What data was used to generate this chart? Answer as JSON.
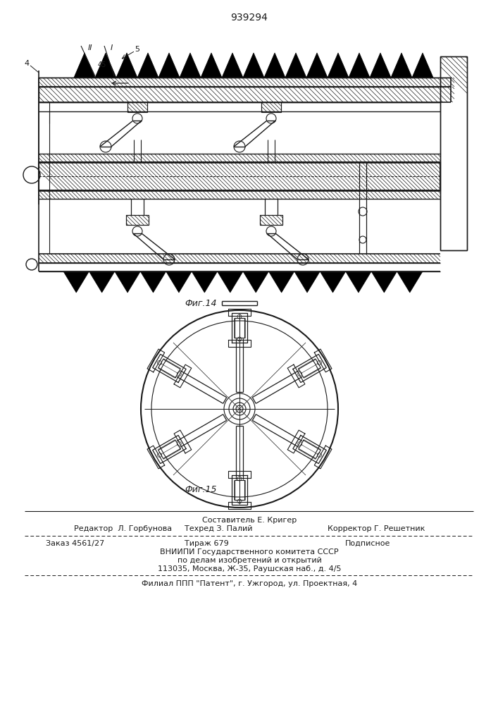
{
  "patent_number": "939294",
  "fig14_label": "Фиг.14",
  "fig15_label": "Фиг.15",
  "footer_line1": "Составитель Е. Кригер",
  "footer_line2_left": "Редактор  Л. Горбунова",
  "footer_line2_mid": "Техред З. Палий",
  "footer_line2_right": "Корректор Г. Решетник",
  "footer_line3_left": "Заказ 4561/27",
  "footer_line3_mid": "Тираж 679",
  "footer_line3_right": "Подписное",
  "footer_line4": "ВНИИПИ Государственного комитета СССР",
  "footer_line5": "по делам изобретений и открытий",
  "footer_line6": "113035, Москва, Ж-35, Раушская наб., д. 4/5",
  "footer_dashed": "Филиал ППП \"Патент\", г. Ужгород, ул. Проектная, 4",
  "bg_color": "#ffffff",
  "ink_color": "#1a1a1a"
}
